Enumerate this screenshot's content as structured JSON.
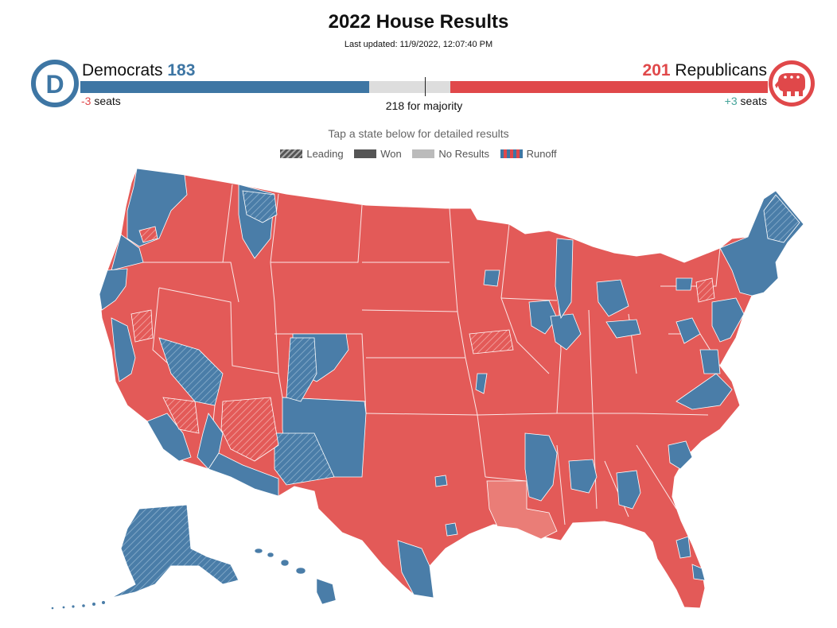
{
  "header": {
    "title": "2022 House Results",
    "last_updated": "Last updated: 11/9/2022, 12:07:40 PM"
  },
  "democrats": {
    "name": "Democrats",
    "seats": "183",
    "change_value": "-3",
    "change_unit": "seats",
    "color": "#3e76a4",
    "logo_letter": "D"
  },
  "republicans": {
    "name": "Republicans",
    "seats": "201",
    "change_value": "+3",
    "change_unit": "seats",
    "color": "#e0484a",
    "logo_icon": "elephant-icon"
  },
  "majority": {
    "label": "218 for majority",
    "threshold": 218,
    "total_seats": 435
  },
  "map": {
    "hint": "Tap a state below for detailed results",
    "legend": {
      "leading": "Leading",
      "won": "Won",
      "no_results": "No Results",
      "runoff": "Runoff"
    },
    "colors": {
      "dem": "#4a7da8",
      "rep": "#e35a58",
      "no_results": "#bbbbbb",
      "border": "#ffffff"
    }
  }
}
